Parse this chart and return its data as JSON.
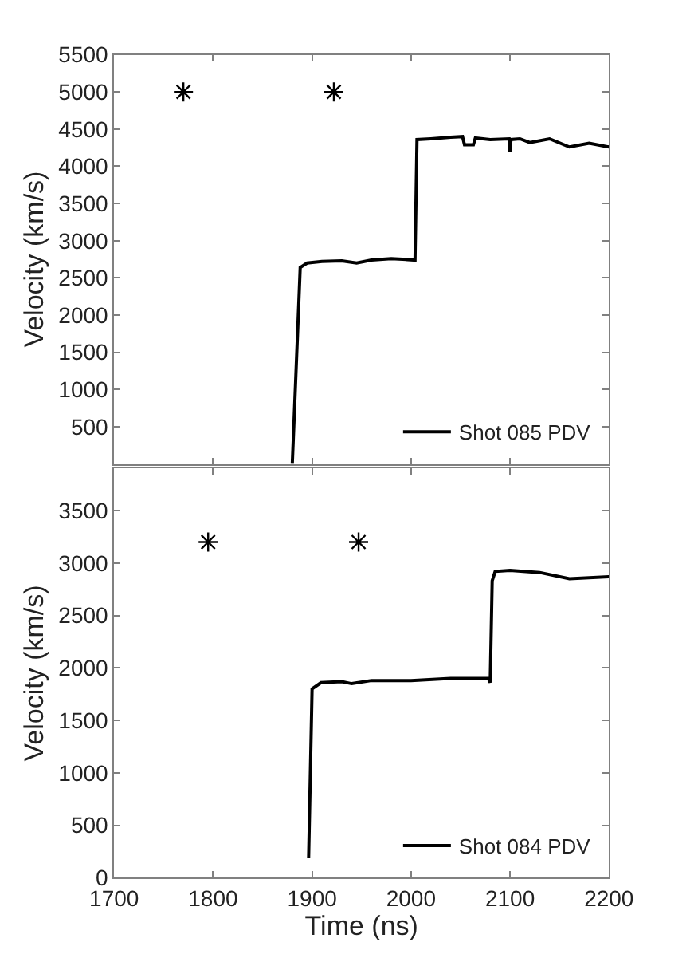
{
  "chart_data": [
    {
      "type": "line",
      "ylabel": "Velocity (km/s)",
      "xlim": [
        1700,
        2200
      ],
      "xticks": [
        1700,
        1800,
        1900,
        2000,
        2100,
        2200
      ],
      "ylim": [
        0,
        5500
      ],
      "yticks": [
        500,
        1000,
        1500,
        2000,
        2500,
        3000,
        3500,
        4000,
        4500,
        5000,
        5500
      ],
      "tick_labels": "y",
      "legend": "bottom right",
      "series": [
        {
          "name": "Shot 085 PDV",
          "color": "#000000",
          "marker": "none",
          "line_style": "solid",
          "x": [
            1880,
            1888,
            1895,
            1910,
            1930,
            1945,
            1960,
            1980,
            2004,
            2006,
            2020,
            2040,
            2052,
            2054,
            2063,
            2065,
            2080,
            2099,
            2100,
            2101,
            2110,
            2120,
            2140,
            2160,
            2180,
            2200
          ],
          "values": [
            0,
            2640,
            2700,
            2720,
            2730,
            2700,
            2740,
            2760,
            2740,
            4360,
            4370,
            4390,
            4400,
            4290,
            4290,
            4380,
            4360,
            4370,
            4190,
            4360,
            4370,
            4320,
            4370,
            4260,
            4310,
            4260
          ]
        },
        {
          "type": "scatter",
          "color": "#000000",
          "marker": "cross",
          "x": [
            1770,
            1922
          ],
          "values": [
            5000,
            5000
          ]
        }
      ]
    },
    {
      "type": "line",
      "xlabel": "Time (ns)",
      "ylabel": "Velocity (km/s)",
      "xlim": [
        1700,
        2200
      ],
      "xticks": [
        1700,
        1800,
        1900,
        2000,
        2100,
        2200
      ],
      "ylim": [
        0,
        3900
      ],
      "yticks": [
        0,
        500,
        1000,
        1500,
        2000,
        2500,
        3000,
        3500
      ],
      "legend": "bottom right",
      "series": [
        {
          "name": "Shot 084 PDV",
          "color": "#000000",
          "marker": "none",
          "line_style": "solid",
          "x": [
            1896.5,
            1900,
            1909,
            1930,
            1940,
            1960,
            2000,
            2040,
            2078,
            2080,
            2082,
            2085,
            2100,
            2130,
            2160,
            2200
          ],
          "values": [
            190,
            1800,
            1860,
            1870,
            1850,
            1880,
            1880,
            1900,
            1900,
            1860,
            2830,
            2920,
            2930,
            2910,
            2850,
            2870
          ]
        },
        {
          "type": "scatter",
          "color": "#000000",
          "marker": "cross",
          "x": [
            1795,
            1947
          ],
          "values": [
            3200,
            3200
          ]
        }
      ]
    }
  ]
}
